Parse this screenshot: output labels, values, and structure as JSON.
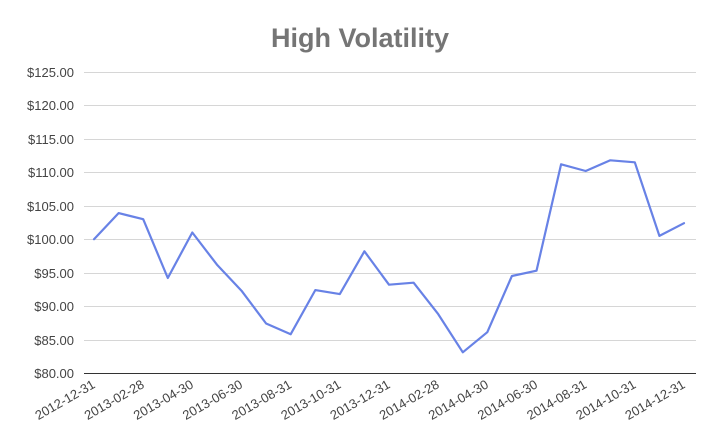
{
  "chart_data": {
    "type": "line",
    "title": "High Volatility",
    "xlabel": "",
    "ylabel": "",
    "ylim": [
      80,
      125
    ],
    "yticks": [
      80,
      85,
      90,
      95,
      100,
      105,
      110,
      115,
      120,
      125
    ],
    "ytick_labels": [
      "$80.00",
      "$85.00",
      "$90.00",
      "$95.00",
      "$100.00",
      "$105.00",
      "$110.00",
      "$115.00",
      "$120.00",
      "$125.00"
    ],
    "x": [
      "2012-12-31",
      "2013-01-31",
      "2013-02-28",
      "2013-03-31",
      "2013-04-30",
      "2013-05-31",
      "2013-06-30",
      "2013-07-31",
      "2013-08-31",
      "2013-09-30",
      "2013-10-31",
      "2013-11-30",
      "2013-12-31",
      "2014-01-31",
      "2014-02-28",
      "2014-03-31",
      "2014-04-30",
      "2014-05-31",
      "2014-06-30",
      "2014-07-31",
      "2014-08-31",
      "2014-09-30",
      "2014-10-31",
      "2014-11-30",
      "2014-12-31"
    ],
    "xtick_labels": [
      "2012-12-31",
      "2013-02-28",
      "2013-04-30",
      "2013-06-30",
      "2013-08-31",
      "2013-10-31",
      "2013-12-31",
      "2014-02-28",
      "2014-04-30",
      "2014-06-30",
      "2014-08-31",
      "2014-10-31",
      "2014-12-31"
    ],
    "series": [
      {
        "name": "",
        "color": "#6882E6",
        "values": [
          100.0,
          103.9,
          103.0,
          94.2,
          101.0,
          96.2,
          92.3,
          87.4,
          85.8,
          92.4,
          91.8,
          98.2,
          93.2,
          93.5,
          88.8,
          83.1,
          86.1,
          94.5,
          95.3,
          111.2,
          110.2,
          111.8,
          111.5,
          100.5,
          102.4
        ]
      }
    ],
    "grid": true,
    "legend": "none"
  }
}
